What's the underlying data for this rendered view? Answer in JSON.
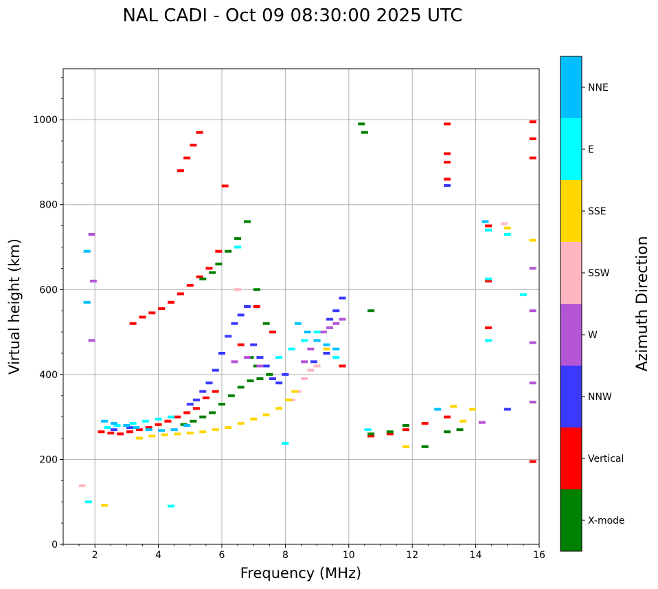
{
  "chart_data": {
    "type": "scatter",
    "title": "NAL CADI - Oct 09 08:30:00 2025 UTC",
    "xlabel": "Frequency (MHz)",
    "ylabel": "Virtual height (km)",
    "xlim": [
      1,
      16
    ],
    "ylim": [
      0,
      1120
    ],
    "xticks": [
      "2",
      "4",
      "6",
      "8",
      "10",
      "12",
      "14",
      "16"
    ],
    "yticks": [
      "0",
      "200",
      "400",
      "600",
      "800",
      "1000"
    ],
    "grid": true,
    "colorbar": {
      "label": "Azimuth Direction",
      "categories": [
        {
          "name": "X-mode",
          "color": "#008000"
        },
        {
          "name": "Vertical",
          "color": "#ff0000"
        },
        {
          "name": "NNW",
          "color": "#3a3aff"
        },
        {
          "name": "W",
          "color": "#b455d6"
        },
        {
          "name": "SSW",
          "color": "#ffb6c1"
        },
        {
          "name": "SSE",
          "color": "#ffd700"
        },
        {
          "name": "E",
          "color": "#00ffff"
        },
        {
          "name": "NNE",
          "color": "#00bfff"
        }
      ]
    },
    "series": [
      {
        "name": "Vertical",
        "x": [
          2.2,
          2.5,
          2.8,
          3.1,
          3.4,
          3.7,
          4.0,
          4.3,
          4.6,
          4.9,
          5.2,
          5.5,
          5.8,
          3.2,
          3.5,
          3.8,
          4.1,
          4.4,
          4.7,
          5.0,
          5.3,
          5.6,
          5.9,
          4.7,
          4.9,
          5.1,
          5.3,
          6.1,
          6.6,
          7.1,
          7.6,
          9.8,
          10.7,
          11.3,
          11.8,
          12.4,
          13.1,
          13.1,
          13.1,
          13.1,
          13.1,
          14.4,
          14.4,
          14.4,
          15.8,
          15.8,
          15.8,
          15.8
        ],
        "y": [
          265,
          262,
          260,
          265,
          270,
          275,
          282,
          290,
          300,
          310,
          320,
          345,
          360,
          520,
          535,
          545,
          555,
          570,
          590,
          610,
          630,
          650,
          690,
          880,
          910,
          940,
          970,
          844,
          470,
          560,
          500,
          420,
          255,
          260,
          270,
          285,
          300,
          990,
          920,
          860,
          900,
          750,
          620,
          510,
          995,
          955,
          910,
          195
        ]
      },
      {
        "name": "X-mode",
        "x": [
          4.8,
          5.1,
          5.4,
          5.7,
          6.0,
          6.3,
          6.6,
          6.9,
          7.2,
          7.5,
          5.4,
          5.7,
          5.9,
          6.2,
          6.5,
          6.8,
          7.1,
          7.4,
          10.4,
          10.5,
          10.7,
          10.7,
          11.3,
          11.8,
          12.4,
          13.1,
          13.5,
          7.1,
          6.9
        ],
        "y": [
          282,
          290,
          300,
          310,
          330,
          350,
          370,
          385,
          390,
          400,
          625,
          640,
          660,
          690,
          720,
          760,
          600,
          520,
          990,
          970,
          550,
          260,
          265,
          280,
          230,
          265,
          270,
          420,
          440
        ]
      },
      {
        "name": "NNW",
        "x": [
          5.0,
          5.2,
          5.4,
          5.6,
          5.8,
          6.0,
          6.2,
          6.4,
          6.6,
          6.8,
          7.0,
          7.2,
          7.4,
          7.6,
          7.8,
          8.0,
          9.4,
          9.6,
          9.8,
          13.1,
          15.0,
          2.6,
          3.1,
          8.9,
          9.3
        ],
        "y": [
          330,
          340,
          360,
          380,
          410,
          450,
          490,
          520,
          540,
          560,
          470,
          440,
          420,
          390,
          380,
          400,
          530,
          550,
          580,
          845,
          318,
          270,
          275,
          430,
          450
        ]
      },
      {
        "name": "W",
        "x": [
          1.9,
          1.95,
          1.9,
          8.6,
          8.8,
          9.0,
          9.2,
          9.4,
          9.6,
          9.8,
          6.4,
          6.8,
          7.2,
          14.2,
          15.8,
          15.8,
          15.8,
          15.8,
          15.8
        ],
        "y": [
          730,
          620,
          480,
          430,
          460,
          480,
          500,
          510,
          520,
          530,
          430,
          440,
          420,
          287,
          650,
          550,
          475,
          335,
          380
        ]
      },
      {
        "name": "SSW",
        "x": [
          1.6,
          8.2,
          8.4,
          8.6,
          8.8,
          9.0,
          14.9,
          6.5
        ],
        "y": [
          138,
          340,
          360,
          390,
          410,
          420,
          755,
          600
        ]
      },
      {
        "name": "SSE",
        "x": [
          2.3,
          3.4,
          3.8,
          4.2,
          4.6,
          5.0,
          5.4,
          5.8,
          6.2,
          6.6,
          7.0,
          7.4,
          7.8,
          8.1,
          8.3,
          11.8,
          13.3,
          13.6,
          13.9,
          15.0,
          15.8,
          9.3
        ],
        "y": [
          92,
          250,
          255,
          258,
          260,
          262,
          265,
          270,
          275,
          285,
          295,
          305,
          320,
          340,
          360,
          230,
          325,
          290,
          318,
          745,
          716,
          460
        ]
      },
      {
        "name": "E",
        "x": [
          1.8,
          2.4,
          2.7,
          3.2,
          3.6,
          4.0,
          4.4,
          6.5,
          7.8,
          8.2,
          8.6,
          9.0,
          9.6,
          10.6,
          14.4,
          14.4,
          14.4,
          15.0,
          15.5,
          4.4,
          8.0
        ],
        "y": [
          100,
          275,
          280,
          285,
          290,
          295,
          300,
          700,
          440,
          460,
          480,
          500,
          440,
          270,
          740,
          625,
          480,
          730,
          588,
          90,
          238
        ]
      },
      {
        "name": "NNE",
        "x": [
          1.75,
          1.75,
          2.3,
          2.6,
          3.0,
          3.3,
          3.7,
          4.1,
          4.5,
          4.9,
          8.4,
          8.7,
          9.0,
          9.3,
          9.6,
          12.8,
          14.3
        ],
        "y": [
          690,
          570,
          290,
          285,
          280,
          275,
          270,
          268,
          270,
          280,
          520,
          500,
          480,
          470,
          460,
          318,
          760
        ]
      }
    ]
  }
}
